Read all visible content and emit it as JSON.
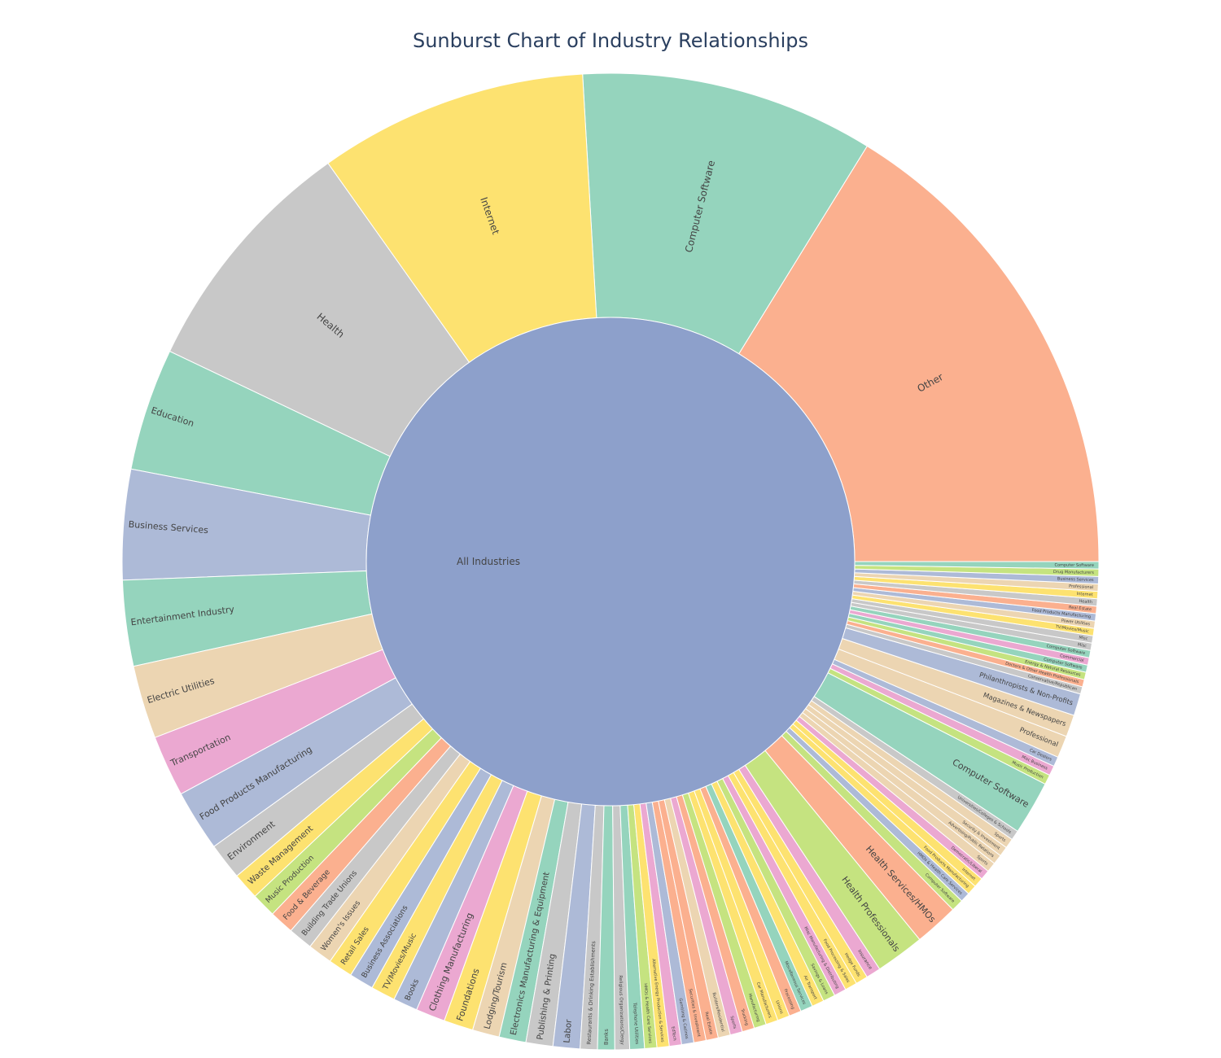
{
  "chart_data": {
    "type": "sunburst",
    "title": "Sunburst Chart of Industry Relationships",
    "root": {
      "label": "All Industries",
      "color": "#8da0cb"
    },
    "children": [
      {
        "label": "Other",
        "value": 200,
        "color": "#fbb08f",
        "children": []
      },
      {
        "label": "Computer Software",
        "value": 120,
        "color": "#95d4bd",
        "children": []
      },
      {
        "label": "Internet",
        "value": 110,
        "color": "#fde270",
        "children": []
      },
      {
        "label": "Health",
        "value": 100,
        "color": "#c8c8c8",
        "children": []
      },
      {
        "label": "Education",
        "value": 50,
        "color": "#95d4bd",
        "children": []
      },
      {
        "label": "Business Services",
        "value": 45,
        "color": "#adbad7",
        "children": []
      },
      {
        "label": "Entertainment Industry",
        "value": 35,
        "color": "#95d4bd",
        "children": []
      },
      {
        "label": "Electric Utilities",
        "value": 30,
        "color": "#ecd5b2",
        "children": []
      },
      {
        "label": "Transportation",
        "value": 25,
        "color": "#eba8d1",
        "children": []
      },
      {
        "label": "Food Products Manufacturing",
        "value": 25,
        "color": "#adbad7",
        "children": []
      },
      {
        "label": "Environment",
        "value": 15,
        "color": "#c8c8c8",
        "children": []
      },
      {
        "label": "Waste Management",
        "value": 11,
        "color": "#fde270",
        "children": []
      },
      {
        "label": "Music Production",
        "value": 10,
        "color": "#c5e380",
        "children": []
      },
      {
        "label": "Food & Beverage",
        "value": 10,
        "color": "#fbb08f",
        "children": []
      },
      {
        "label": "Building Trade Unions",
        "value": 10,
        "color": "#c8c8c8",
        "children": []
      },
      {
        "label": "Women's Issues",
        "value": 10,
        "color": "#ecd5b2",
        "children": []
      },
      {
        "label": "Retail Sales",
        "value": 10,
        "color": "#fde270",
        "children": []
      },
      {
        "label": "Business Associations",
        "value": 10,
        "color": "#adbad7",
        "children": []
      },
      {
        "label": "TV/Movies/Music",
        "value": 10,
        "color": "#fde270",
        "children": []
      },
      {
        "label": "Books",
        "value": 10,
        "color": "#adbad7",
        "children": []
      },
      {
        "label": "Clothing Manufacturing",
        "value": 12,
        "color": "#eba8d1",
        "children": []
      },
      {
        "label": "Foundations",
        "value": 12,
        "color": "#fde270",
        "children": []
      },
      {
        "label": "Lodging/Tourism",
        "value": 11,
        "color": "#ecd5b2",
        "children": []
      },
      {
        "label": "Electronics Manufacturing & Equipment",
        "value": 11,
        "color": "#95d4bd",
        "children": []
      },
      {
        "label": "Publishing & Printing",
        "value": 11,
        "color": "#c8c8c8",
        "children": []
      },
      {
        "label": "Labor",
        "value": 11,
        "color": "#adbad7",
        "children": []
      },
      {
        "label": "Restaurants & Drinking Establishments",
        "value": 7,
        "color": "#c8c8c8",
        "children": []
      },
      {
        "label": "Banks",
        "value": 7,
        "color": "#95d4bd",
        "children": []
      },
      {
        "label": "Religious Organizations/Clergy",
        "value": 6,
        "color": "#c8c8c8",
        "children": []
      },
      {
        "label": "Telephone Utilities",
        "value": 6,
        "color": "#95d4bd",
        "children": []
      },
      {
        "label": "HMOs & Health Care Services",
        "value": 5,
        "color": "#c5e380",
        "children": []
      },
      {
        "label": "Alternative Energy Production & Services",
        "value": 5,
        "color": "#fde270",
        "children": []
      },
      {
        "label": "EdTech",
        "value": 5,
        "color": "#eba8d1",
        "children": []
      },
      {
        "label": "Gambling & Casinos",
        "value": 5,
        "color": "#adbad7",
        "children": []
      },
      {
        "label": "Securities & Investment",
        "value": 5,
        "color": "#fbb08f",
        "children": []
      },
      {
        "label": "Real Estate",
        "value": 5,
        "color": "#fbb08f",
        "children": []
      },
      {
        "label": "Builders/Residential",
        "value": 5,
        "color": "#ecd5b2",
        "children": []
      },
      {
        "label": "Sports",
        "value": 5,
        "color": "#eba8d1",
        "children": []
      },
      {
        "label": "Trucking",
        "value": 5,
        "color": "#fbb08f",
        "children": []
      },
      {
        "label": "Manufacturing",
        "value": 5,
        "color": "#c5e380",
        "children": []
      },
      {
        "label": "Car Manufacturers",
        "value": 5,
        "color": "#fde270",
        "children": []
      },
      {
        "label": "Unions",
        "value": 5,
        "color": "#fde270",
        "children": []
      },
      {
        "label": "Processing",
        "value": 5,
        "color": "#fbb08f",
        "children": []
      },
      {
        "label": "Miscellaneous Services",
        "value": 5,
        "color": "#95d4bd",
        "children": []
      },
      {
        "label": "Air Transport",
        "value": 5,
        "color": "#fde270",
        "children": []
      },
      {
        "label": "Savings & Loans",
        "value": 5,
        "color": "#c5e380",
        "children": []
      },
      {
        "label": "Misc Manufacturing & Distributing",
        "value": 5,
        "color": "#eba8d1",
        "children": []
      },
      {
        "label": "Food Processing & Sales",
        "value": 5,
        "color": "#fde270",
        "children": []
      },
      {
        "label": "Hedge Funds",
        "value": 5,
        "color": "#fde270",
        "children": []
      },
      {
        "label": "Insurance",
        "value": 6,
        "color": "#eba8d1",
        "children": []
      },
      {
        "label": "Health Professionals",
        "value": 20,
        "color": "#c5e380",
        "children": []
      },
      {
        "label": "Health Services/HMOs",
        "value": 18,
        "color": "#fbb08f",
        "children": []
      },
      {
        "label": "Computer Software",
        "value": 5,
        "color": "#c5e380",
        "children": []
      },
      {
        "label": "HMOs & Health Care Services",
        "value": 4,
        "color": "#adbad7",
        "children": []
      },
      {
        "label": "Food Products Manufacturing",
        "value": 4,
        "color": "#fde270",
        "children": []
      },
      {
        "label": "Internet",
        "value": 4,
        "color": "#fde270",
        "children": []
      },
      {
        "label": "Democratic/Liberal",
        "value": 4,
        "color": "#eba8d1",
        "children": []
      },
      {
        "label": "Sports",
        "value": 4,
        "color": "#ecd5b2",
        "children": []
      },
      {
        "label": "Advertising/Public Relations",
        "value": 4,
        "color": "#ecd5b2",
        "children": []
      },
      {
        "label": "Security & Investment",
        "value": 4,
        "color": "#ecd5b2",
        "children": []
      },
      {
        "label": "Sports",
        "value": 4,
        "color": "#ecd5b2",
        "children": []
      },
      {
        "label": "Universities/Colleges & Schools",
        "value": 4,
        "color": "#c8c8c8",
        "children": []
      },
      {
        "label": "Computer Software",
        "value": 22,
        "color": "#95d4bd",
        "children": []
      },
      {
        "label": "Music Production",
        "value": 4,
        "color": "#c5e380",
        "children": []
      },
      {
        "label": "Misc Business",
        "value": 4,
        "color": "#eba8d1",
        "children": []
      },
      {
        "label": "Car Dealers",
        "value": 4,
        "color": "#adbad7",
        "children": []
      },
      {
        "label": "Professional",
        "value": 9,
        "color": "#ecd5b2",
        "children": []
      },
      {
        "label": "Magazines & Newspapers",
        "value": 9,
        "color": "#ecd5b2",
        "children": []
      },
      {
        "label": "Philanthropists & Non-Profits",
        "value": 9,
        "color": "#adbad7",
        "children": []
      },
      {
        "label": "Conservative/Republican",
        "value": 3,
        "color": "#c8c8c8",
        "children": []
      },
      {
        "label": "Doctors & Other Health Professionals",
        "value": 3,
        "color": "#fbb08f",
        "children": []
      },
      {
        "label": "Energy & Natural Resources",
        "value": 3,
        "color": "#c5e380",
        "children": []
      },
      {
        "label": "Computer Software",
        "value": 3,
        "color": "#95d4bd",
        "children": []
      },
      {
        "label": "Commercial",
        "value": 3,
        "color": "#eba8d1",
        "children": []
      },
      {
        "label": "Computer Software",
        "value": 3,
        "color": "#95d4bd",
        "children": []
      },
      {
        "label": "Misc",
        "value": 3,
        "color": "#c8c8c8",
        "children": []
      },
      {
        "label": "Misc",
        "value": 3,
        "color": "#c8c8c8",
        "children": []
      },
      {
        "label": "TV/Movies/Music",
        "value": 3,
        "color": "#fde270",
        "children": []
      },
      {
        "label": "Power Utilities",
        "value": 3,
        "color": "#ecd5b2",
        "children": []
      },
      {
        "label": "Food Products Manufacturing",
        "value": 3,
        "color": "#adbad7",
        "children": []
      },
      {
        "label": "Real Estate",
        "value": 3,
        "color": "#fbb08f",
        "children": []
      },
      {
        "label": "Health",
        "value": 3,
        "color": "#c8c8c8",
        "children": []
      },
      {
        "label": "Internet",
        "value": 3,
        "color": "#fde270",
        "children": []
      },
      {
        "label": "Professional",
        "value": 3,
        "color": "#ecd5b2",
        "children": []
      },
      {
        "label": "Business Services",
        "value": 3,
        "color": "#adbad7",
        "children": []
      },
      {
        "label": "Drug Manufacturers",
        "value": 3,
        "color": "#c5e380",
        "children": []
      },
      {
        "label": "Computer Software",
        "value": 3,
        "color": "#95d4bd",
        "children": []
      }
    ],
    "inner": [
      {
        "label": "Health",
        "color": "#b3b3b3",
        "children": [
          0
        ]
      },
      {
        "label": "Computer Software",
        "color": "#66c2a5",
        "children": [
          1
        ]
      },
      {
        "label": "Education",
        "color": "#66c2a5",
        "children": [
          2
        ]
      },
      {
        "label": "Other",
        "color": "#fc8d62",
        "children": [
          3
        ]
      },
      {
        "label": "Internet",
        "color": "#ffd92f",
        "children": [
          4
        ]
      },
      {
        "label": "Sports",
        "color": "#e5c494",
        "children": [
          5
        ]
      },
      {
        "label": "Books",
        "color": "#8da0cb",
        "children": [
          6
        ]
      },
      {
        "label": "Foundations",
        "color": "#ffd92f",
        "children": [
          7
        ]
      },
      {
        "label": "Electric Utilities",
        "color": "#e5c494",
        "children": [
          8
        ]
      },
      {
        "label": "Unions",
        "color": "#ffd92f",
        "children": [
          9
        ]
      },
      {
        "label": "Manufacturing",
        "color": "#a6d854",
        "children": [
          10
        ]
      },
      {
        "label": "Music Production",
        "color": "#a6d854",
        "children": [
          11
        ]
      },
      {
        "label": "Building Trade Unions",
        "color": "#b3b3b3",
        "children": [
          12
        ]
      },
      {
        "label": "Food & Beverage",
        "color": "#fc8d62",
        "children": [
          13
        ]
      },
      {
        "label": "Sports",
        "color": "#e78ac3",
        "children": [
          14
        ]
      },
      {
        "label": "Alternative Energy Production & Services",
        "color": "#ffd92f",
        "children": [
          15
        ]
      },
      {
        "label": "HMOs & Health Care Services",
        "color": "#a6d854",
        "children": [
          16
        ]
      },
      {
        "label": "Builders/Residential",
        "color": "#e5c494",
        "children": [
          17
        ]
      }
    ]
  }
}
